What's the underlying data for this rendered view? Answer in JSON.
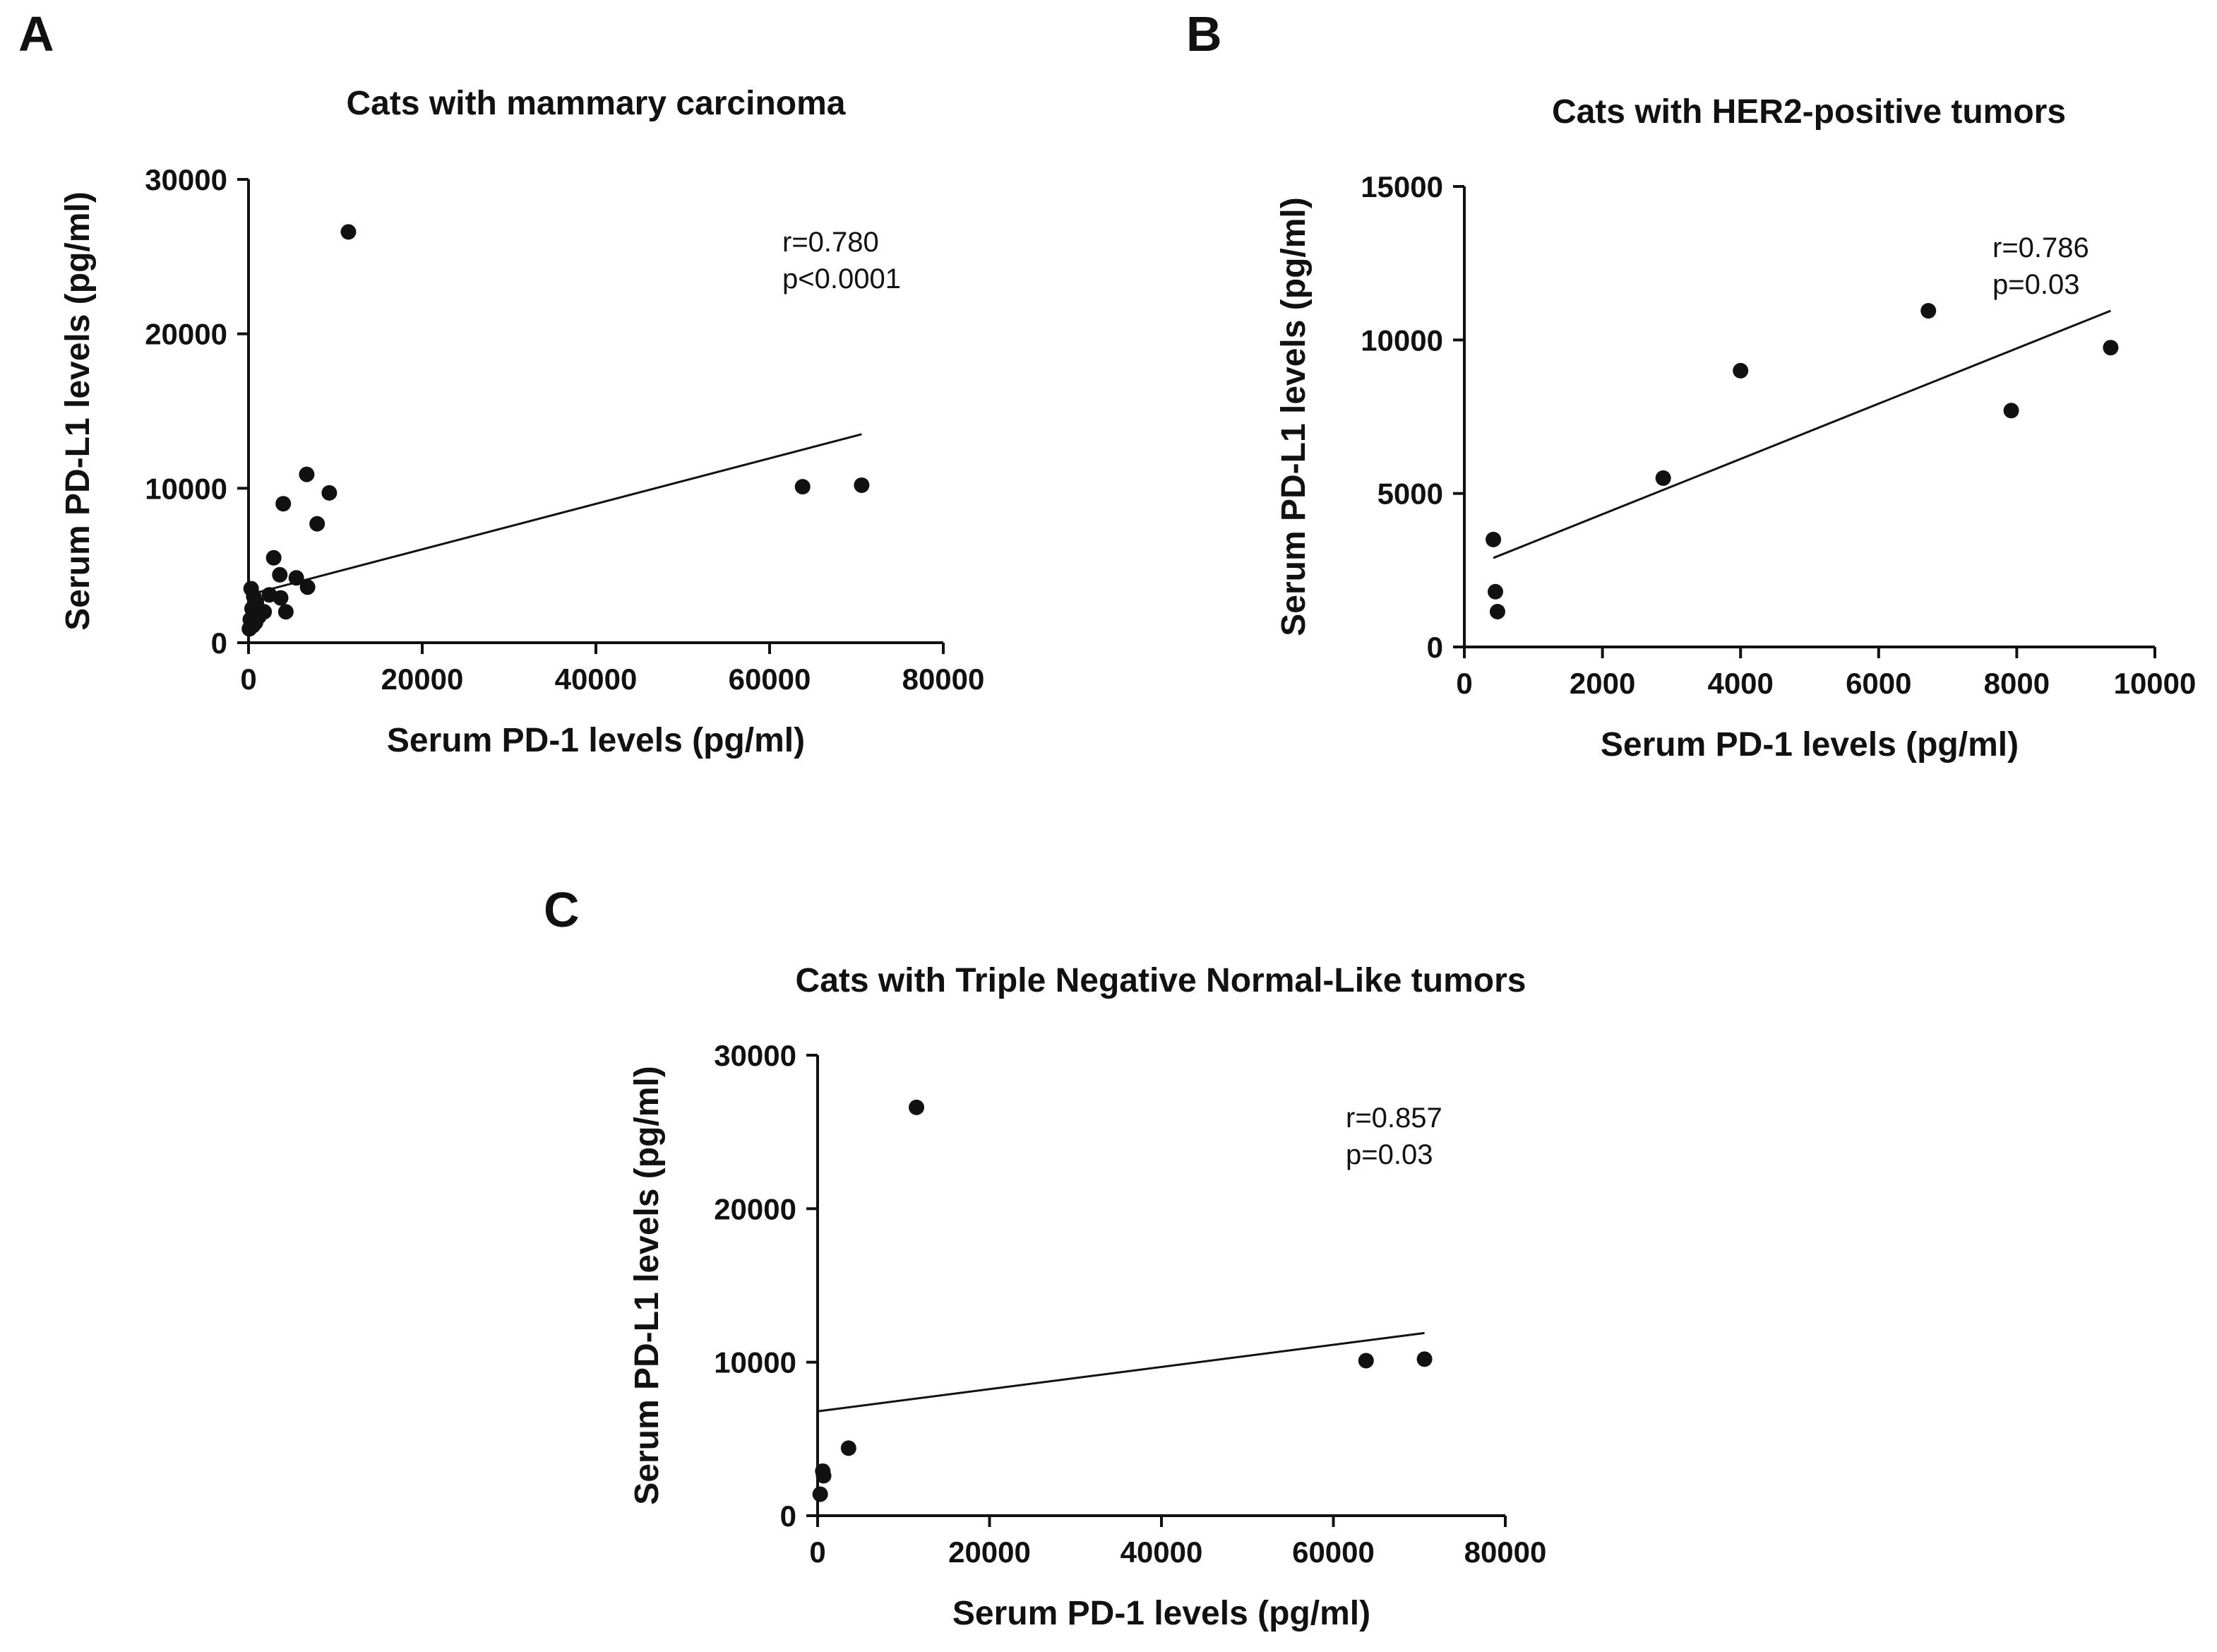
{
  "figure": {
    "background": "#ffffff",
    "ink_color": "#111111"
  },
  "chart_data": [
    {
      "panel": "A",
      "type": "scatter",
      "title": "Cats with mammary carcinoma",
      "xlabel": "Serum PD-1 levels (pg/ml)",
      "ylabel": "Serum PD-L1 levels (pg/ml)",
      "xlim": [
        0,
        80000
      ],
      "ylim": [
        0,
        30000
      ],
      "xticks": [
        0,
        20000,
        40000,
        60000,
        80000
      ],
      "yticks": [
        0,
        10000,
        20000,
        30000
      ],
      "xtick_labels": [
        "0",
        "20000",
        "40000",
        "60000",
        "80000"
      ],
      "ytick_labels": [
        "0",
        "10000",
        "20000",
        "30000"
      ],
      "annotations": [
        "r=0.780",
        "p<0.0001"
      ],
      "grid": false,
      "points": [
        {
          "x": 11500,
          "y": 26600
        },
        {
          "x": 6700,
          "y": 10900
        },
        {
          "x": 9300,
          "y": 9700
        },
        {
          "x": 4000,
          "y": 9000
        },
        {
          "x": 7900,
          "y": 7700
        },
        {
          "x": 2900,
          "y": 5500
        },
        {
          "x": 3600,
          "y": 4400
        },
        {
          "x": 5500,
          "y": 4200
        },
        {
          "x": 6800,
          "y": 3600
        },
        {
          "x": 2400,
          "y": 3100
        },
        {
          "x": 3700,
          "y": 2900
        },
        {
          "x": 1800,
          "y": 2000
        },
        {
          "x": 4300,
          "y": 2000
        },
        {
          "x": 300,
          "y": 3500
        },
        {
          "x": 600,
          "y": 3000
        },
        {
          "x": 900,
          "y": 2600
        },
        {
          "x": 400,
          "y": 2200
        },
        {
          "x": 1200,
          "y": 1700
        },
        {
          "x": 200,
          "y": 1500
        },
        {
          "x": 500,
          "y": 1100
        },
        {
          "x": 800,
          "y": 1300
        },
        {
          "x": 100,
          "y": 900
        },
        {
          "x": 63800,
          "y": 10100
        },
        {
          "x": 70600,
          "y": 10200
        }
      ],
      "fit_line": {
        "x": [
          0,
          70600
        ],
        "y": [
          3100,
          13500
        ]
      }
    },
    {
      "panel": "B",
      "type": "scatter",
      "title": "Cats with HER2-positive tumors",
      "xlabel": "Serum PD-1 levels (pg/ml)",
      "ylabel": "Serum PD-L1 levels (pg/ml)",
      "xlim": [
        0,
        10000
      ],
      "ylim": [
        0,
        15000
      ],
      "xticks": [
        0,
        2000,
        4000,
        6000,
        8000,
        10000
      ],
      "yticks": [
        0,
        5000,
        10000,
        15000
      ],
      "xtick_labels": [
        "0",
        "2000",
        "4000",
        "6000",
        "8000",
        "10000"
      ],
      "ytick_labels": [
        "0",
        "5000",
        "10000",
        "15000"
      ],
      "annotations": [
        "r=0.786",
        "p=0.03"
      ],
      "grid": false,
      "points": [
        {
          "x": 420,
          "y": 3500
        },
        {
          "x": 450,
          "y": 1800
        },
        {
          "x": 480,
          "y": 1150
        },
        {
          "x": 2880,
          "y": 5500
        },
        {
          "x": 4000,
          "y": 9000
        },
        {
          "x": 6720,
          "y": 10950
        },
        {
          "x": 7920,
          "y": 7700
        },
        {
          "x": 9360,
          "y": 9750
        }
      ],
      "fit_line": {
        "x": [
          420,
          9360
        ],
        "y": [
          2900,
          10950
        ]
      }
    },
    {
      "panel": "C",
      "type": "scatter",
      "title": "Cats with Triple Negative Normal-Like tumors",
      "xlabel": "Serum PD-1 levels (pg/ml)",
      "ylabel": "Serum PD-L1 levels (pg/ml)",
      "xlim": [
        0,
        80000
      ],
      "ylim": [
        0,
        30000
      ],
      "xticks": [
        0,
        20000,
        40000,
        60000,
        80000
      ],
      "yticks": [
        0,
        10000,
        20000,
        30000
      ],
      "xtick_labels": [
        "0",
        "20000",
        "40000",
        "60000",
        "80000"
      ],
      "ytick_labels": [
        "0",
        "10000",
        "20000",
        "30000"
      ],
      "annotations": [
        "r=0.857",
        "p=0.03"
      ],
      "grid": false,
      "points": [
        {
          "x": 11500,
          "y": 26600
        },
        {
          "x": 63800,
          "y": 10100
        },
        {
          "x": 70600,
          "y": 10200
        },
        {
          "x": 3600,
          "y": 4400
        },
        {
          "x": 600,
          "y": 2900
        },
        {
          "x": 700,
          "y": 2600
        },
        {
          "x": 300,
          "y": 1400
        }
      ],
      "fit_line": {
        "x": [
          0,
          70600
        ],
        "y": [
          6800,
          11900
        ]
      }
    }
  ]
}
